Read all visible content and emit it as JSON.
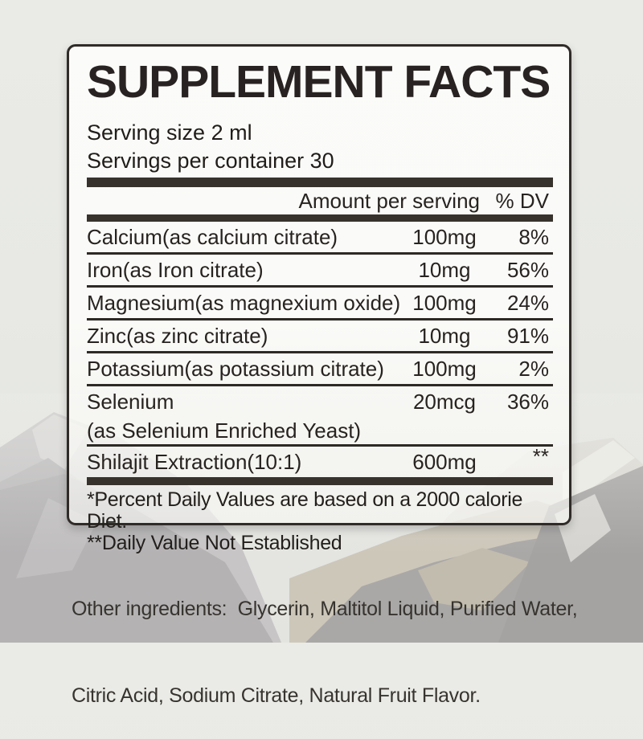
{
  "label": {
    "title": "SUPPLEMENT FACTS",
    "serving_size": "Serving size 2 ml",
    "servings_per_container": "Servings per container 30",
    "columns": {
      "amount": "Amount per serving",
      "dv": "% DV"
    },
    "rows": [
      {
        "name": "Calcium(as calcium citrate)",
        "amount": "100mg",
        "dv": "8%"
      },
      {
        "name": "Iron(as Iron citrate)",
        "amount": "10mg",
        "dv": "56%"
      },
      {
        "name": "Magnesium(as magnexium oxide)",
        "amount": "100mg",
        "dv": "24%"
      },
      {
        "name": "Zinc(as zinc citrate)",
        "amount": "10mg",
        "dv": "91%"
      },
      {
        "name": "Potassium(as potassium citrate)",
        "amount": "100mg",
        "dv": "2%"
      },
      {
        "name": "Selenium",
        "note": "(as Selenium Enriched Yeast)",
        "amount": "20mcg",
        "dv": "36%"
      },
      {
        "name": "Shilajit Extraction(10:1)",
        "amount": "600mg",
        "dv": "**",
        "dv_raised": true,
        "no_divider": true
      }
    ],
    "footnotes": [
      "*Percent Daily Values are based on a 2000 calorie Diet.",
      "**Daily Value Not Established"
    ]
  },
  "other_ingredients": {
    "line1": "Other ingredients:  Glycerin, Maltitol Liquid, Purified Water,",
    "line2": "Citric Acid, Sodium Citrate, Natural Fruit Flavor."
  },
  "colors": {
    "text": "#272320",
    "divider_bar": "#37322c",
    "card_border": "#2f2b28",
    "background": "#e9eae6"
  }
}
